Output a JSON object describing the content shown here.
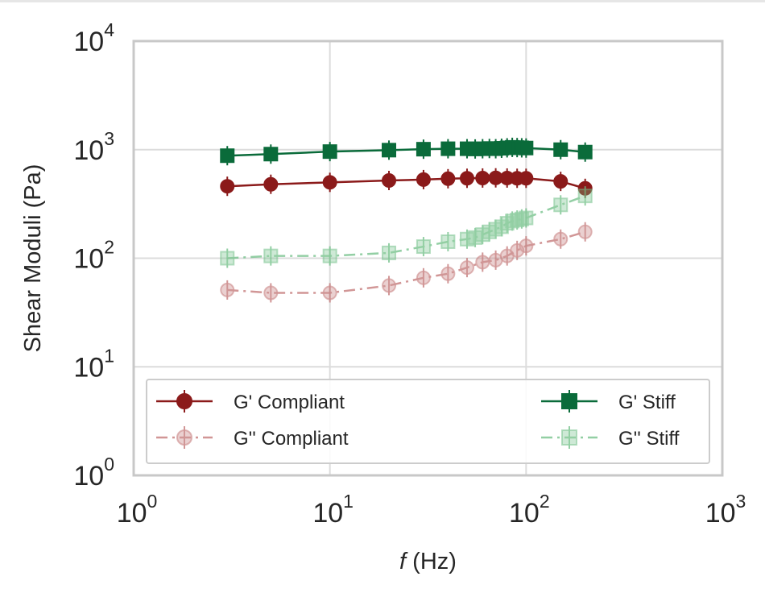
{
  "chart_data": {
    "type": "line",
    "xlabel_var": "f",
    "xlabel_unit": " (Hz)",
    "ylabel": "Shear Moduli (Pa)",
    "xscale": "log",
    "yscale": "log",
    "xlim": [
      1,
      1000
    ],
    "ylim": [
      1,
      10000
    ],
    "grid": true,
    "legend_position": "lower-center",
    "xticks": [
      {
        "base": "10",
        "exp": "0"
      },
      {
        "base": "10",
        "exp": "1"
      },
      {
        "base": "10",
        "exp": "2"
      },
      {
        "base": "10",
        "exp": "3"
      }
    ],
    "yticks": [
      {
        "base": "10",
        "exp": "0"
      },
      {
        "base": "10",
        "exp": "1"
      },
      {
        "base": "10",
        "exp": "2"
      },
      {
        "base": "10",
        "exp": "3"
      },
      {
        "base": "10",
        "exp": "4"
      }
    ],
    "series": [
      {
        "name": "G' Compliant",
        "color": "#8b1a1a",
        "marker": "circle",
        "line": "solid",
        "filled": true,
        "x": [
          3,
          5,
          10,
          20,
          30,
          40,
          50,
          60,
          70,
          80,
          90,
          100,
          150,
          200
        ],
        "y": [
          460,
          480,
          500,
          520,
          530,
          540,
          545,
          548,
          550,
          548,
          545,
          545,
          510,
          440
        ]
      },
      {
        "name": "G'' Compliant",
        "color": "#c27474",
        "marker": "circle",
        "line": "dashdot",
        "filled": false,
        "x": [
          3,
          5,
          10,
          20,
          30,
          40,
          50,
          60,
          70,
          80,
          90,
          100,
          150,
          200
        ],
        "y": [
          51,
          48,
          48,
          56,
          66,
          72,
          82,
          92,
          96,
          105,
          118,
          130,
          150,
          175
        ]
      },
      {
        "name": "G' Stiff",
        "color": "#0a6b3a",
        "marker": "square",
        "line": "solid",
        "filled": true,
        "x": [
          3,
          5,
          10,
          20,
          30,
          40,
          50,
          55,
          60,
          65,
          70,
          75,
          80,
          85,
          90,
          95,
          100,
          150,
          200
        ],
        "y": [
          880,
          910,
          960,
          990,
          1010,
          1020,
          1020,
          1015,
          1020,
          1025,
          1020,
          1030,
          1040,
          1050,
          1045,
          1040,
          1035,
          1000,
          950
        ]
      },
      {
        "name": "G'' Stiff",
        "color": "#6fbf86",
        "marker": "square",
        "line": "dashdot",
        "filled": false,
        "x": [
          3,
          5,
          10,
          20,
          30,
          40,
          50,
          55,
          60,
          65,
          70,
          75,
          80,
          85,
          90,
          95,
          100,
          150,
          200
        ],
        "y": [
          100,
          105,
          105,
          112,
          128,
          142,
          150,
          155,
          165,
          175,
          185,
          195,
          210,
          220,
          225,
          230,
          235,
          310,
          375
        ]
      }
    ]
  }
}
